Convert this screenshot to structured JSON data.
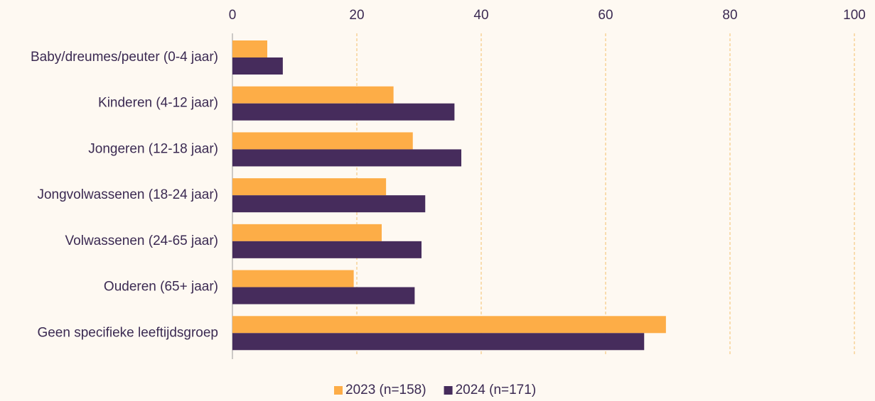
{
  "chart_data": {
    "type": "barh",
    "categories": [
      "Baby/dreumes/peuter (0-4 jaar)",
      "Kinderen (4-12 jaar)",
      "Jongeren (12-18 jaar)",
      "Jongvolwassenen (18-24 jaar)",
      "Volwassenen (24-65 jaar)",
      "Ouderen (65+ jaar)",
      "Geen specifieke leeftijdsgroep"
    ],
    "series": [
      {
        "name": "2023 (n=158)",
        "color": "#fdad47",
        "values": [
          5.6,
          25.9,
          29.0,
          24.7,
          24.0,
          19.5,
          69.7
        ]
      },
      {
        "name": "2024 (n=171)",
        "color": "#462c5c",
        "values": [
          8.1,
          35.7,
          36.8,
          31.0,
          30.4,
          29.3,
          66.2
        ]
      }
    ],
    "xlim": [
      0,
      100
    ],
    "xticks": [
      0,
      20,
      40,
      60,
      80,
      100
    ],
    "grid": true,
    "legend": "bottom"
  }
}
